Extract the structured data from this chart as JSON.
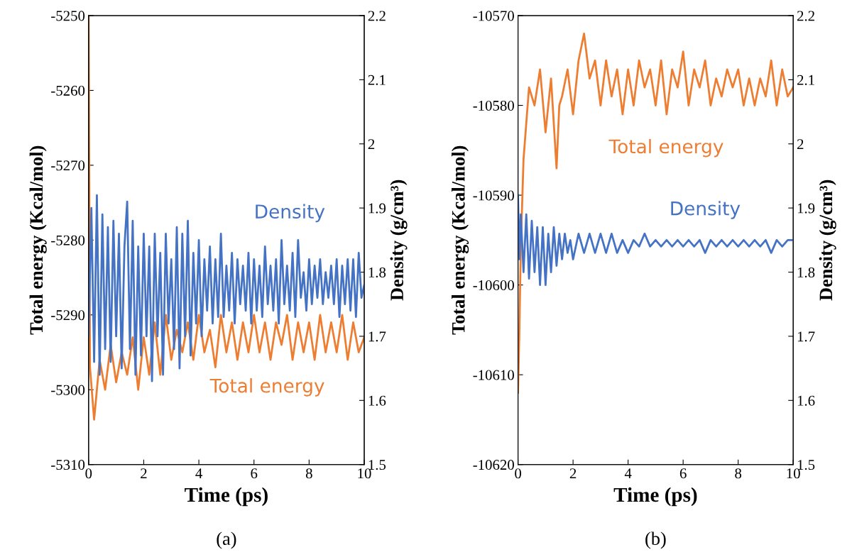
{
  "chart_data": [
    {
      "type": "line",
      "xlabel": "Time (ps)",
      "ylabel": "Total energy (Kcal/mol)",
      "y2label": "Density (g/cm³)",
      "annotations": [
        "(a)"
      ],
      "xlim": [
        0,
        10
      ],
      "xticks": [
        0,
        2,
        4,
        6,
        8,
        10
      ],
      "ylim": [
        -5310,
        -5250
      ],
      "yticks": [
        -5310,
        -5300,
        -5290,
        -5280,
        -5270,
        -5260,
        -5250
      ],
      "y2lim": [
        1.5,
        2.2
      ],
      "y2ticks": [
        1.5,
        1.6,
        1.7,
        1.8,
        1.9,
        2,
        2.1,
        2.2
      ],
      "grid": false,
      "legend": false,
      "marker": "none",
      "line_style": "solid",
      "series": [
        {
          "name": "Density",
          "color": "#4472c4",
          "axis": "y2",
          "x": [
            0,
            0.1,
            0.2,
            0.3,
            0.4,
            0.5,
            0.6,
            0.7,
            0.8,
            0.9,
            1.0,
            1.1,
            1.2,
            1.3,
            1.4,
            1.5,
            1.6,
            1.7,
            1.8,
            1.9,
            2.0,
            2.1,
            2.2,
            2.3,
            2.4,
            2.5,
            2.6,
            2.7,
            2.8,
            2.9,
            3.0,
            3.1,
            3.2,
            3.3,
            3.4,
            3.5,
            3.6,
            3.7,
            3.8,
            3.9,
            4.0,
            4.1,
            4.2,
            4.3,
            4.4,
            4.5,
            4.6,
            4.7,
            4.8,
            4.9,
            5.0,
            5.1,
            5.2,
            5.3,
            5.4,
            5.5,
            5.6,
            5.7,
            5.8,
            5.9,
            6.0,
            6.1,
            6.2,
            6.3,
            6.4,
            6.5,
            6.6,
            6.7,
            6.8,
            6.9,
            7.0,
            7.1,
            7.2,
            7.3,
            7.4,
            7.5,
            7.6,
            7.7,
            7.8,
            7.9,
            8.0,
            8.1,
            8.2,
            8.3,
            8.4,
            8.5,
            8.6,
            8.7,
            8.8,
            8.9,
            9.0,
            9.1,
            9.2,
            9.3,
            9.4,
            9.5,
            9.6,
            9.7,
            9.8,
            9.9,
            10.0
          ],
          "values": [
            1.7,
            1.9,
            1.66,
            1.92,
            1.64,
            1.89,
            1.68,
            1.87,
            1.66,
            1.88,
            1.7,
            1.86,
            1.65,
            1.84,
            1.91,
            1.68,
            1.88,
            1.64,
            1.84,
            1.67,
            1.86,
            1.7,
            1.84,
            1.63,
            1.86,
            1.7,
            1.83,
            1.64,
            1.86,
            1.72,
            1.82,
            1.68,
            1.87,
            1.65,
            1.86,
            1.7,
            1.88,
            1.67,
            1.83,
            1.72,
            1.85,
            1.7,
            1.82,
            1.74,
            1.84,
            1.72,
            1.82,
            1.73,
            1.86,
            1.73,
            1.81,
            1.74,
            1.83,
            1.72,
            1.82,
            1.75,
            1.81,
            1.74,
            1.83,
            1.72,
            1.82,
            1.74,
            1.81,
            1.73,
            1.84,
            1.75,
            1.81,
            1.74,
            1.82,
            1.72,
            1.85,
            1.75,
            1.81,
            1.74,
            1.83,
            1.73,
            1.85,
            1.76,
            1.8,
            1.74,
            1.82,
            1.75,
            1.81,
            1.76,
            1.82,
            1.75,
            1.8,
            1.76,
            1.81,
            1.75,
            1.82,
            1.73,
            1.81,
            1.75,
            1.82,
            1.74,
            1.82,
            1.73,
            1.83,
            1.76,
            1.78
          ]
        },
        {
          "name": "Total energy",
          "color": "#ed7d31",
          "axis": "y",
          "x": [
            0,
            0.05,
            0.2,
            0.4,
            0.6,
            0.8,
            1.0,
            1.2,
            1.4,
            1.6,
            1.8,
            2.0,
            2.2,
            2.4,
            2.6,
            2.8,
            3.0,
            3.2,
            3.4,
            3.6,
            3.8,
            4.0,
            4.2,
            4.4,
            4.6,
            4.8,
            5.0,
            5.2,
            5.4,
            5.6,
            5.8,
            6.0,
            6.2,
            6.4,
            6.6,
            6.8,
            7.0,
            7.2,
            7.4,
            7.6,
            7.8,
            8.0,
            8.2,
            8.4,
            8.6,
            8.8,
            9.0,
            9.2,
            9.4,
            9.6,
            9.8,
            10.0
          ],
          "values": [
            -5250,
            -5297,
            -5304,
            -5296,
            -5300,
            -5294,
            -5299,
            -5295,
            -5298,
            -5293,
            -5300,
            -5293,
            -5298,
            -5291,
            -5298,
            -5290,
            -5296,
            -5292,
            -5295,
            -5291,
            -5296,
            -5290,
            -5295,
            -5292,
            -5297,
            -5290,
            -5295,
            -5291,
            -5296,
            -5291,
            -5295,
            -5290,
            -5295,
            -5291,
            -5296,
            -5291,
            -5294,
            -5290,
            -5296,
            -5291,
            -5295,
            -5291,
            -5296,
            -5290,
            -5295,
            -5291,
            -5295,
            -5290,
            -5296,
            -5291,
            -5295,
            -5293
          ]
        }
      ]
    },
    {
      "type": "line",
      "xlabel": "Time (ps)",
      "ylabel": "Total energy (Kcal/mol)",
      "y2label": "Density (g/cm³)",
      "annotations": [
        "(b)"
      ],
      "xlim": [
        0,
        10
      ],
      "xticks": [
        0,
        2,
        4,
        6,
        8,
        10
      ],
      "ylim": [
        -10620,
        -10570
      ],
      "yticks": [
        -10620,
        -10610,
        -10600,
        -10590,
        -10580,
        -10570
      ],
      "y2lim": [
        1.5,
        2.2
      ],
      "y2ticks": [
        1.5,
        1.6,
        1.7,
        1.8,
        1.9,
        2,
        2.1,
        2.2
      ],
      "grid": false,
      "legend": false,
      "marker": "none",
      "line_style": "solid",
      "series": [
        {
          "name": "Total energy",
          "color": "#ed7d31",
          "axis": "y",
          "x": [
            0,
            0.05,
            0.1,
            0.2,
            0.3,
            0.4,
            0.6,
            0.8,
            1.0,
            1.2,
            1.4,
            1.5,
            1.6,
            1.8,
            2.0,
            2.2,
            2.4,
            2.6,
            2.8,
            3.0,
            3.2,
            3.4,
            3.6,
            3.8,
            4.0,
            4.2,
            4.4,
            4.6,
            4.8,
            5.0,
            5.2,
            5.4,
            5.6,
            5.8,
            6.0,
            6.2,
            6.4,
            6.6,
            6.8,
            7.0,
            7.2,
            7.4,
            7.6,
            7.8,
            8.0,
            8.2,
            8.4,
            8.6,
            8.8,
            9.0,
            9.2,
            9.4,
            9.6,
            9.8,
            10.0
          ],
          "values": [
            -10612,
            -10605,
            -10596,
            -10586,
            -10582,
            -10578,
            -10580,
            -10576,
            -10583,
            -10577,
            -10587,
            -10580,
            -10579,
            -10576,
            -10581,
            -10575,
            -10572,
            -10577,
            -10575,
            -10580,
            -10575,
            -10579,
            -10576,
            -10581,
            -10576,
            -10580,
            -10575,
            -10578,
            -10576,
            -10580,
            -10575,
            -10581,
            -10576,
            -10578,
            -10574,
            -10580,
            -10576,
            -10578,
            -10575,
            -10580,
            -10577,
            -10579,
            -10576,
            -10578,
            -10576,
            -10580,
            -10577,
            -10580,
            -10577,
            -10579,
            -10575,
            -10580,
            -10576,
            -10579,
            -10578
          ]
        },
        {
          "name": "Density",
          "color": "#4472c4",
          "axis": "y2",
          "x": [
            0,
            0.05,
            0.1,
            0.2,
            0.3,
            0.4,
            0.5,
            0.6,
            0.7,
            0.8,
            0.9,
            1.0,
            1.1,
            1.2,
            1.3,
            1.4,
            1.5,
            1.6,
            1.7,
            1.8,
            1.9,
            2.0,
            2.2,
            2.4,
            2.6,
            2.8,
            3.0,
            3.2,
            3.4,
            3.6,
            3.8,
            4.0,
            4.2,
            4.4,
            4.6,
            4.8,
            5.0,
            5.2,
            5.4,
            5.6,
            5.8,
            6.0,
            6.2,
            6.4,
            6.6,
            6.8,
            7.0,
            7.2,
            7.4,
            7.6,
            7.8,
            8.0,
            8.2,
            8.4,
            8.6,
            8.8,
            9.0,
            9.2,
            9.4,
            9.6,
            9.8,
            10.0
          ],
          "values": [
            1.92,
            1.82,
            1.89,
            1.8,
            1.89,
            1.79,
            1.88,
            1.8,
            1.87,
            1.78,
            1.87,
            1.78,
            1.86,
            1.8,
            1.87,
            1.81,
            1.86,
            1.82,
            1.86,
            1.83,
            1.85,
            1.82,
            1.86,
            1.83,
            1.86,
            1.83,
            1.86,
            1.83,
            1.86,
            1.83,
            1.85,
            1.83,
            1.85,
            1.84,
            1.86,
            1.84,
            1.85,
            1.84,
            1.85,
            1.84,
            1.85,
            1.84,
            1.85,
            1.84,
            1.85,
            1.83,
            1.85,
            1.84,
            1.85,
            1.84,
            1.85,
            1.84,
            1.85,
            1.84,
            1.85,
            1.84,
            1.85,
            1.83,
            1.85,
            1.84,
            1.85,
            1.85
          ]
        }
      ]
    }
  ]
}
